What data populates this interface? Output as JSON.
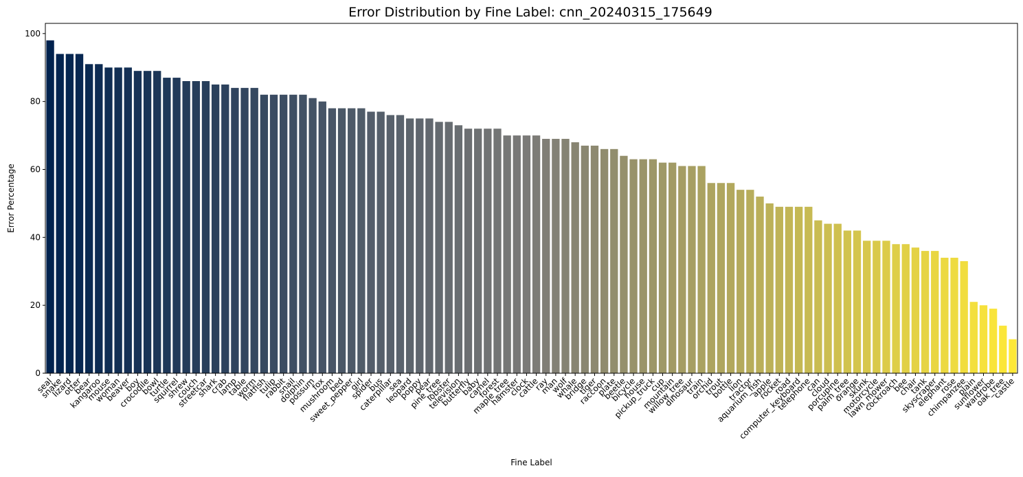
{
  "chart_data": {
    "type": "bar",
    "title": "Error Distribution by Fine Label: cnn_20240315_175649",
    "xlabel": "Fine Label",
    "ylabel": "Error Percentage",
    "ylim": [
      0,
      103
    ],
    "yticks": [
      0,
      20,
      40,
      60,
      80,
      100
    ],
    "grid": false,
    "legend": "none",
    "colormap": "cividis",
    "color_start": "#00224e",
    "color_end": "#fee838",
    "categories": [
      "seal",
      "snake",
      "lizard",
      "otter",
      "bear",
      "kangaroo",
      "mouse",
      "woman",
      "beaver",
      "boy",
      "crocodile",
      "bowl",
      "turtle",
      "squirrel",
      "shrew",
      "couch",
      "streetcar",
      "shark",
      "crab",
      "lamp",
      "table",
      "worm",
      "flatfish",
      "tulip",
      "rabbit",
      "snail",
      "dolphin",
      "possum",
      "fox",
      "mushroom",
      "bed",
      "sweet_pepper",
      "girl",
      "spider",
      "bus",
      "caterpillar",
      "sea",
      "leopard",
      "poppy",
      "pear",
      "pine_tree",
      "lobster",
      "television",
      "butterfly",
      "baby",
      "camel",
      "forest",
      "maple_tree",
      "hamster",
      "clock",
      "cattle",
      "ray",
      "man",
      "wolf",
      "whale",
      "bridge",
      "tiger",
      "raccoon",
      "plate",
      "beetle",
      "bicycle",
      "house",
      "pickup_truck",
      "cup",
      "mountain",
      "willow_tree",
      "dinosaur",
      "train",
      "orchid",
      "trout",
      "bottle",
      "lion",
      "tractor",
      "aquarium_fish",
      "apple",
      "rocket",
      "road",
      "computer_keyboard",
      "telephone",
      "can",
      "cloud",
      "porcupine",
      "palm_tree",
      "orange",
      "skunk",
      "motorcycle",
      "lawn_mower",
      "cockroach",
      "bee",
      "chair",
      "tank",
      "skyscraper",
      "elephant",
      "rose",
      "chimpanzee",
      "plain",
      "sunflower",
      "wardrobe",
      "oak_tree",
      "castle"
    ],
    "values": [
      98,
      94,
      94,
      94,
      91,
      91,
      90,
      90,
      90,
      89,
      89,
      89,
      87,
      87,
      86,
      86,
      86,
      85,
      85,
      84,
      84,
      84,
      82,
      82,
      82,
      82,
      82,
      81,
      80,
      78,
      78,
      78,
      78,
      77,
      77,
      76,
      76,
      75,
      75,
      75,
      74,
      74,
      73,
      72,
      72,
      72,
      72,
      70,
      70,
      70,
      70,
      69,
      69,
      69,
      68,
      67,
      67,
      66,
      66,
      64,
      63,
      63,
      63,
      62,
      62,
      61,
      61,
      61,
      56,
      56,
      56,
      54,
      54,
      52,
      50,
      49,
      49,
      49,
      49,
      45,
      44,
      44,
      42,
      42,
      39,
      39,
      39,
      38,
      38,
      37,
      36,
      36,
      34,
      34,
      33,
      21,
      20,
      19,
      14,
      10
    ]
  }
}
